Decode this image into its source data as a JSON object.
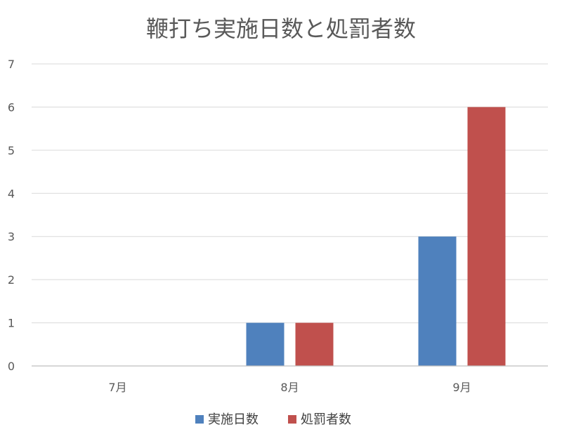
{
  "chart_data": {
    "type": "bar",
    "title": "鞭打ち実施日数と処罰者数",
    "xlabel": "",
    "ylabel": "",
    "categories": [
      "7月",
      "8月",
      "9月"
    ],
    "series": [
      {
        "name": "実施日数",
        "color": "#4f81bd",
        "values": [
          0,
          1,
          3
        ]
      },
      {
        "name": "処罰者数",
        "color": "#c0504d",
        "values": [
          0,
          1,
          6
        ]
      }
    ],
    "ylim": [
      0,
      7
    ],
    "yticks": [
      "0",
      "1",
      "2",
      "3",
      "4",
      "5",
      "6",
      "7"
    ],
    "grid": true,
    "legend": "bottom"
  }
}
